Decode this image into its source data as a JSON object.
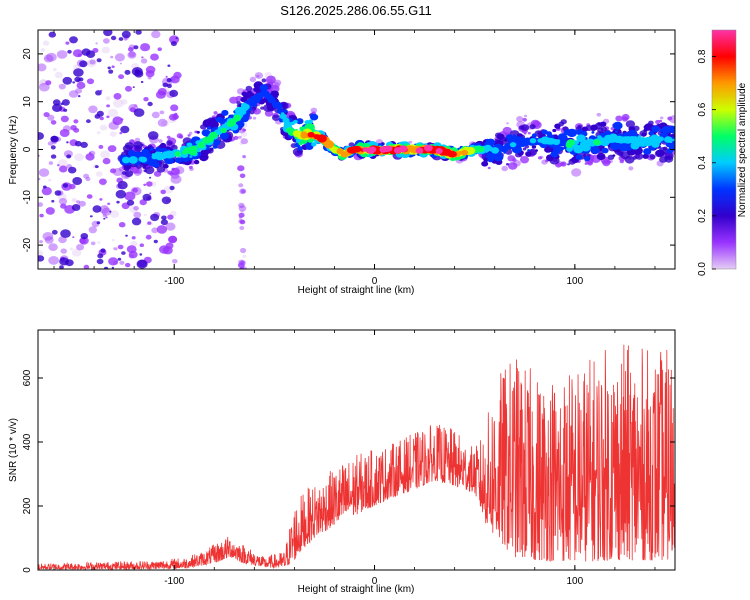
{
  "title": "S126.2025.286.06.55.G11",
  "colors": {
    "snr_line": "#ee3333",
    "colormap": [
      "#e5ccf5",
      "#9933ff",
      "#3300cc",
      "#0033ff",
      "#00ccff",
      "#00ff66",
      "#ccff00",
      "#ff9900",
      "#ff0000",
      "#ff33aa"
    ]
  },
  "chart_data": [
    {
      "type": "heatmap",
      "name": "spectrogram",
      "title": "S126.2025.286.06.55.G11",
      "xlabel": "Height of straight line (km)",
      "ylabel": "Frequency (Hz)",
      "xlim": [
        -168,
        150
      ],
      "ylim": [
        -25,
        25
      ],
      "xticks": [
        -100,
        0,
        100
      ],
      "xtick_labels": [
        "-100",
        "0",
        "100"
      ],
      "yticks": [
        -20,
        -10,
        0,
        10,
        20
      ],
      "ytick_labels": [
        "-20",
        "-10",
        "0",
        "10",
        "20"
      ],
      "colorbar": {
        "label": "Normalized spectral amplitude",
        "range": [
          0.0,
          0.9
        ],
        "ticks": [
          0.0,
          0.2,
          0.4,
          0.6,
          0.8
        ],
        "tick_labels": [
          "0.0",
          "0.2",
          "0.4",
          "0.6",
          "0.8"
        ]
      },
      "ridge": {
        "description": "dominant frequency trace",
        "x": [
          -118,
          -100,
          -90,
          -80,
          -70,
          -62,
          -55,
          -48,
          -42,
          -36,
          -30,
          -25,
          -20,
          -15,
          -10,
          0,
          10,
          20,
          30,
          40,
          50,
          60,
          80,
          100,
          120,
          140,
          150
        ],
        "y": [
          -2,
          -1,
          0,
          3,
          6,
          10,
          12,
          9,
          4,
          3,
          3,
          2,
          0,
          -1,
          0,
          0,
          0,
          0,
          0,
          -1,
          0,
          0,
          2,
          1,
          2,
          2,
          2
        ],
        "amplitude": [
          0.35,
          0.45,
          0.5,
          0.45,
          0.5,
          0.35,
          0.3,
          0.3,
          0.5,
          0.65,
          0.8,
          0.75,
          0.6,
          0.7,
          0.8,
          0.9,
          0.85,
          0.85,
          0.85,
          0.8,
          0.5,
          0.35,
          0.35,
          0.45,
          0.4,
          0.4,
          0.35
        ]
      }
    },
    {
      "type": "line",
      "name": "snr",
      "xlabel": "Height of straight line (km)",
      "ylabel": "SNR (10 * v/v)",
      "xlim": [
        -168,
        150
      ],
      "ylim": [
        0,
        750
      ],
      "xticks": [
        -100,
        0,
        100
      ],
      "xtick_labels": [
        "-100",
        "0",
        "100"
      ],
      "yticks": [
        0,
        200,
        400,
        600
      ],
      "ytick_labels": [
        "0",
        "200",
        "400",
        "600"
      ],
      "envelope": {
        "x": [
          -168,
          -140,
          -110,
          -95,
          -85,
          -78,
          -72,
          -65,
          -55,
          -45,
          -40,
          -35,
          -30,
          -20,
          -10,
          0,
          10,
          20,
          30,
          40,
          50,
          55,
          60,
          70,
          80,
          100,
          120,
          140,
          150
        ],
        "lower": [
          2,
          2,
          3,
          5,
          15,
          25,
          40,
          20,
          8,
          5,
          30,
          70,
          100,
          140,
          170,
          200,
          230,
          250,
          280,
          260,
          240,
          150,
          100,
          40,
          30,
          25,
          30,
          30,
          30
        ],
        "upper": [
          20,
          25,
          30,
          40,
          60,
          90,
          110,
          80,
          40,
          60,
          210,
          250,
          270,
          320,
          360,
          380,
          400,
          430,
          460,
          440,
          380,
          440,
          600,
          680,
          620,
          640,
          720,
          690,
          700
        ]
      }
    }
  ]
}
